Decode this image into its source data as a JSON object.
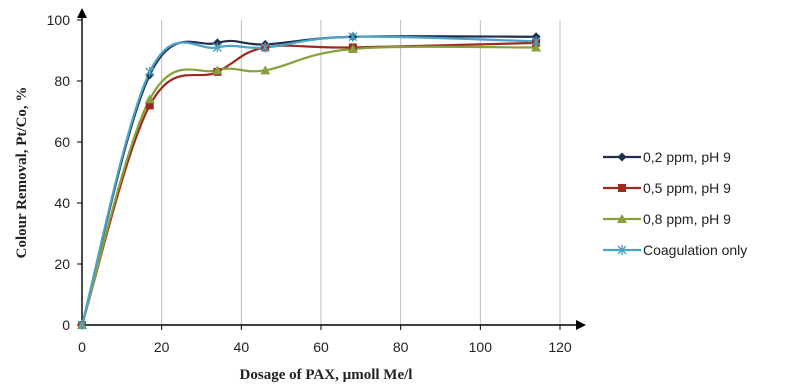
{
  "chart_data": {
    "type": "line",
    "xlabel": "Dosage of PAX, µmoll Me/l",
    "ylabel": "Colour Removal, Pt/Co, %",
    "xlim": [
      0,
      120
    ],
    "ylim": [
      0,
      100
    ],
    "xticks": [
      "0",
      "20",
      "40",
      "60",
      "80",
      "100",
      "120"
    ],
    "yticks": [
      "0",
      "20",
      "40",
      "60",
      "80",
      "100"
    ],
    "grid": "vertical",
    "legend_position": "right",
    "series": [
      {
        "name": "0,2 ppm, pH 9",
        "color": "#1f2f4f",
        "marker": "diamond",
        "x": [
          0,
          17,
          34,
          46,
          68,
          114
        ],
        "y": [
          0,
          82,
          92.5,
          92,
          94.5,
          94.5
        ]
      },
      {
        "name": "0,5 ppm, pH 9",
        "color": "#9e2a1c",
        "marker": "square",
        "x": [
          0,
          17,
          34,
          46,
          68,
          114
        ],
        "y": [
          0,
          72,
          83,
          91,
          91,
          92.5
        ]
      },
      {
        "name": "0,8 ppm, pH 9",
        "color": "#86a13a",
        "marker": "triangle",
        "x": [
          0,
          17,
          34,
          46,
          68,
          114
        ],
        "y": [
          0,
          74,
          83.5,
          83.5,
          90.5,
          91
        ]
      },
      {
        "name": "Coagulation only",
        "color": "#4aa3c4",
        "marker": "star",
        "x": [
          0,
          17,
          34,
          46,
          68,
          114
        ],
        "y": [
          0,
          83,
          91,
          91,
          94.5,
          93
        ]
      }
    ]
  }
}
